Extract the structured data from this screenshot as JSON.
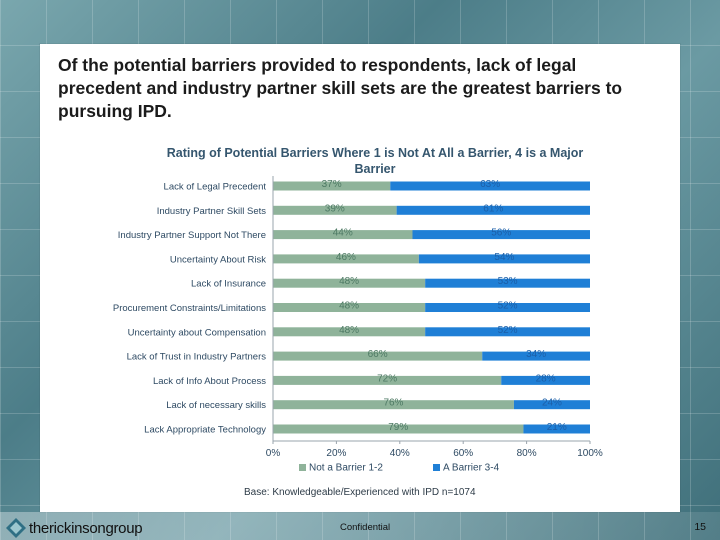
{
  "slide": {
    "title": "Of the potential barriers provided to respondents, lack of legal precedent and industry partner skill sets are the greatest barriers to pursuing IPD.",
    "base_note": "Base: Knowledgeable/Experienced with IPD n=1074",
    "logo_text": "therickinsongroup",
    "confidential": "Confidential",
    "page_number": "15"
  },
  "colors": {
    "not_barrier": "#8fb39a",
    "barrier": "#1f7fd6",
    "title_blue": "#35566e",
    "label_blue": "#2e4a63"
  },
  "chart_data": {
    "type": "bar",
    "orientation": "horizontal",
    "stacked": true,
    "title": "Rating of Potential Barriers Where 1 is Not At All a Barrier, 4 is a Major Barrier",
    "categories": [
      "Lack of Legal Precedent",
      "Industry Partner Skill Sets",
      "Industry Partner Support Not There",
      "Uncertainty About Risk",
      "Lack of Insurance",
      "Procurement Constraints/Limitations",
      "Uncertainty about Compensation",
      "Lack of Trust in Industry Partners",
      "Lack of Info About Process",
      "Lack of necessary skills",
      "Lack Appropriate Technology"
    ],
    "series": [
      {
        "name": "Not a Barrier 1-2",
        "values": [
          37,
          39,
          44,
          46,
          48,
          48,
          48,
          66,
          72,
          76,
          79
        ]
      },
      {
        "name": "A Barrier 3-4",
        "values": [
          63,
          61,
          56,
          54,
          53,
          52,
          52,
          34,
          28,
          24,
          21
        ]
      }
    ],
    "data_labels": {
      "Not a Barrier 1-2": [
        "37%",
        "39%",
        "44%",
        "46%",
        "48%",
        "48%",
        "48%",
        "66%",
        "72%",
        "76%",
        "79%"
      ],
      "A Barrier 3-4": [
        "63%",
        "61%",
        "56%",
        "54%",
        "53%",
        "52%",
        "52%",
        "34%",
        "28%",
        "24%",
        "21%"
      ]
    },
    "x_ticks": [
      "0%",
      "20%",
      "40%",
      "60%",
      "80%",
      "100%"
    ],
    "xlim": [
      0,
      100
    ],
    "legend_position": "bottom",
    "grid": false
  }
}
